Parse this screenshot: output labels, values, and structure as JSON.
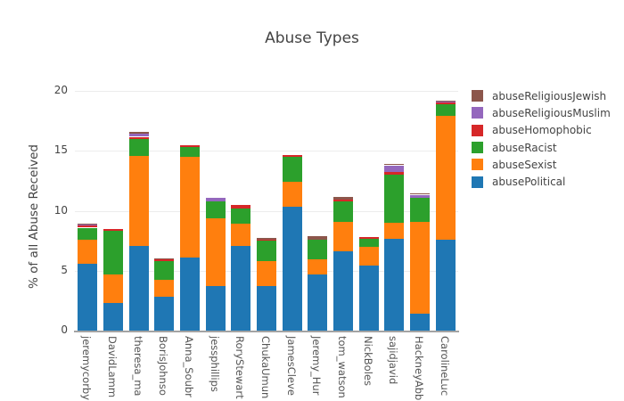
{
  "chart_data": {
    "type": "bar",
    "stacked": true,
    "orientation": "vertical",
    "title": "Abuse Types",
    "xlabel": "",
    "ylabel": "% of all Abuse Received",
    "ylim": [
      0,
      20.5
    ],
    "yticks": [
      0,
      5,
      10,
      15,
      20
    ],
    "grid": true,
    "legend_position": "right",
    "background": "#ffffff",
    "gridline_color": "#ececec",
    "axis_line_color": "#a3a3a3",
    "text_color": "#444444",
    "categories": [
      "jeremycorby",
      "DavidLamm",
      "theresa_ma",
      "BorisJohnso",
      "Anna_Soubr",
      "jessphillips",
      "RoryStewart",
      "ChukaUmun",
      "JamesCleve",
      "Jeremy_Hur",
      "tom_watson",
      "NickBoles",
      "sajidjavid",
      "HackneyAbb",
      "CarolineLuc"
    ],
    "series": [
      {
        "name": "abusePolitical",
        "color": "#1f77b4",
        "values": [
          5.55,
          2.3,
          7.1,
          2.85,
          6.1,
          3.7,
          7.05,
          3.7,
          10.35,
          4.65,
          6.65,
          5.45,
          7.65,
          1.4,
          7.55
        ]
      },
      {
        "name": "abuseSexist",
        "color": "#ff7f0e",
        "values": [
          2.05,
          2.35,
          7.5,
          1.4,
          8.4,
          5.65,
          1.85,
          2.1,
          2.1,
          1.3,
          2.45,
          1.55,
          1.35,
          7.7,
          10.35
        ]
      },
      {
        "name": "abuseRacist",
        "color": "#2ca02c",
        "values": [
          1.0,
          3.65,
          1.4,
          1.55,
          0.85,
          1.4,
          1.25,
          1.7,
          2.05,
          1.6,
          1.7,
          0.65,
          4.0,
          2.0,
          0.95
        ]
      },
      {
        "name": "abuseHomophobic",
        "color": "#d62728",
        "values": [
          0.15,
          0.15,
          0.18,
          0.18,
          0.15,
          0.0,
          0.27,
          0.05,
          0.17,
          0.0,
          0.12,
          0.15,
          0.27,
          0.0,
          0.2
        ]
      },
      {
        "name": "abuseReligiousMuslim",
        "color": "#9467bd",
        "values": [
          0.12,
          0.0,
          0.27,
          0.0,
          0.0,
          0.33,
          0.0,
          0.0,
          0.0,
          0.0,
          0.0,
          0.0,
          0.54,
          0.25,
          0.05
        ]
      },
      {
        "name": "abuseReligiousJewish",
        "color": "#8c564b",
        "values": [
          0.09,
          0.0,
          0.12,
          0.07,
          0.0,
          0.0,
          0.0,
          0.12,
          0.0,
          0.3,
          0.2,
          0.0,
          0.08,
          0.05,
          0.1
        ]
      }
    ],
    "legend_order_top_to_bottom": [
      "abuseReligiousJewish",
      "abuseReligiousMuslim",
      "abuseHomophobic",
      "abuseRacist",
      "abuseSexist",
      "abusePolitical"
    ]
  }
}
